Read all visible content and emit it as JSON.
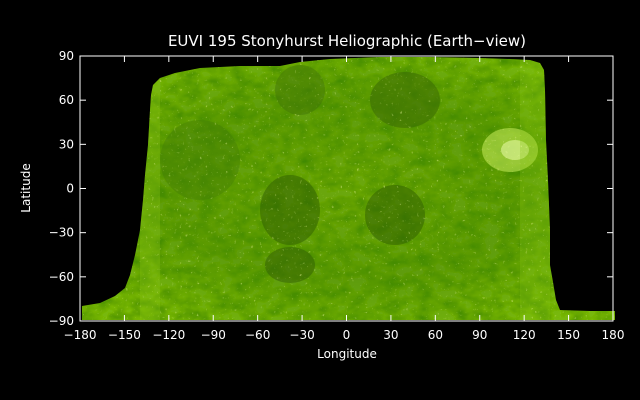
{
  "title": "EUVI 195 Stonyhurst Heliographic (Earth−view)",
  "xlabel": "Longitude",
  "ylabel": "Latitude",
  "x_ticks": [
    "−180",
    "−150",
    "−120",
    "−90",
    "−60",
    "−30",
    "0",
    "30",
    "60",
    "90",
    "120",
    "150",
    "180"
  ],
  "y_ticks": [
    "90",
    "60",
    "30",
    "0",
    "−30",
    "−60",
    "−90"
  ],
  "x_tick_values": [
    -180,
    -150,
    -120,
    -90,
    -60,
    -30,
    0,
    30,
    60,
    90,
    120,
    150,
    180
  ],
  "y_tick_values": [
    90,
    60,
    30,
    0,
    -30,
    -60,
    -90
  ],
  "xlim": [
    -180,
    180
  ],
  "ylim": [
    -90,
    90
  ],
  "image_extent_longitude": [
    -180,
    180
  ],
  "projection": "Stonyhurst heliographic",
  "colors": {
    "background": "#000000",
    "axes": "#ffffff",
    "solar_bright": "#8ccc14",
    "solar_mid": "#5a9a08",
    "solar_dark": "#2c5a02",
    "solar_highlight": "#d8f070"
  }
}
